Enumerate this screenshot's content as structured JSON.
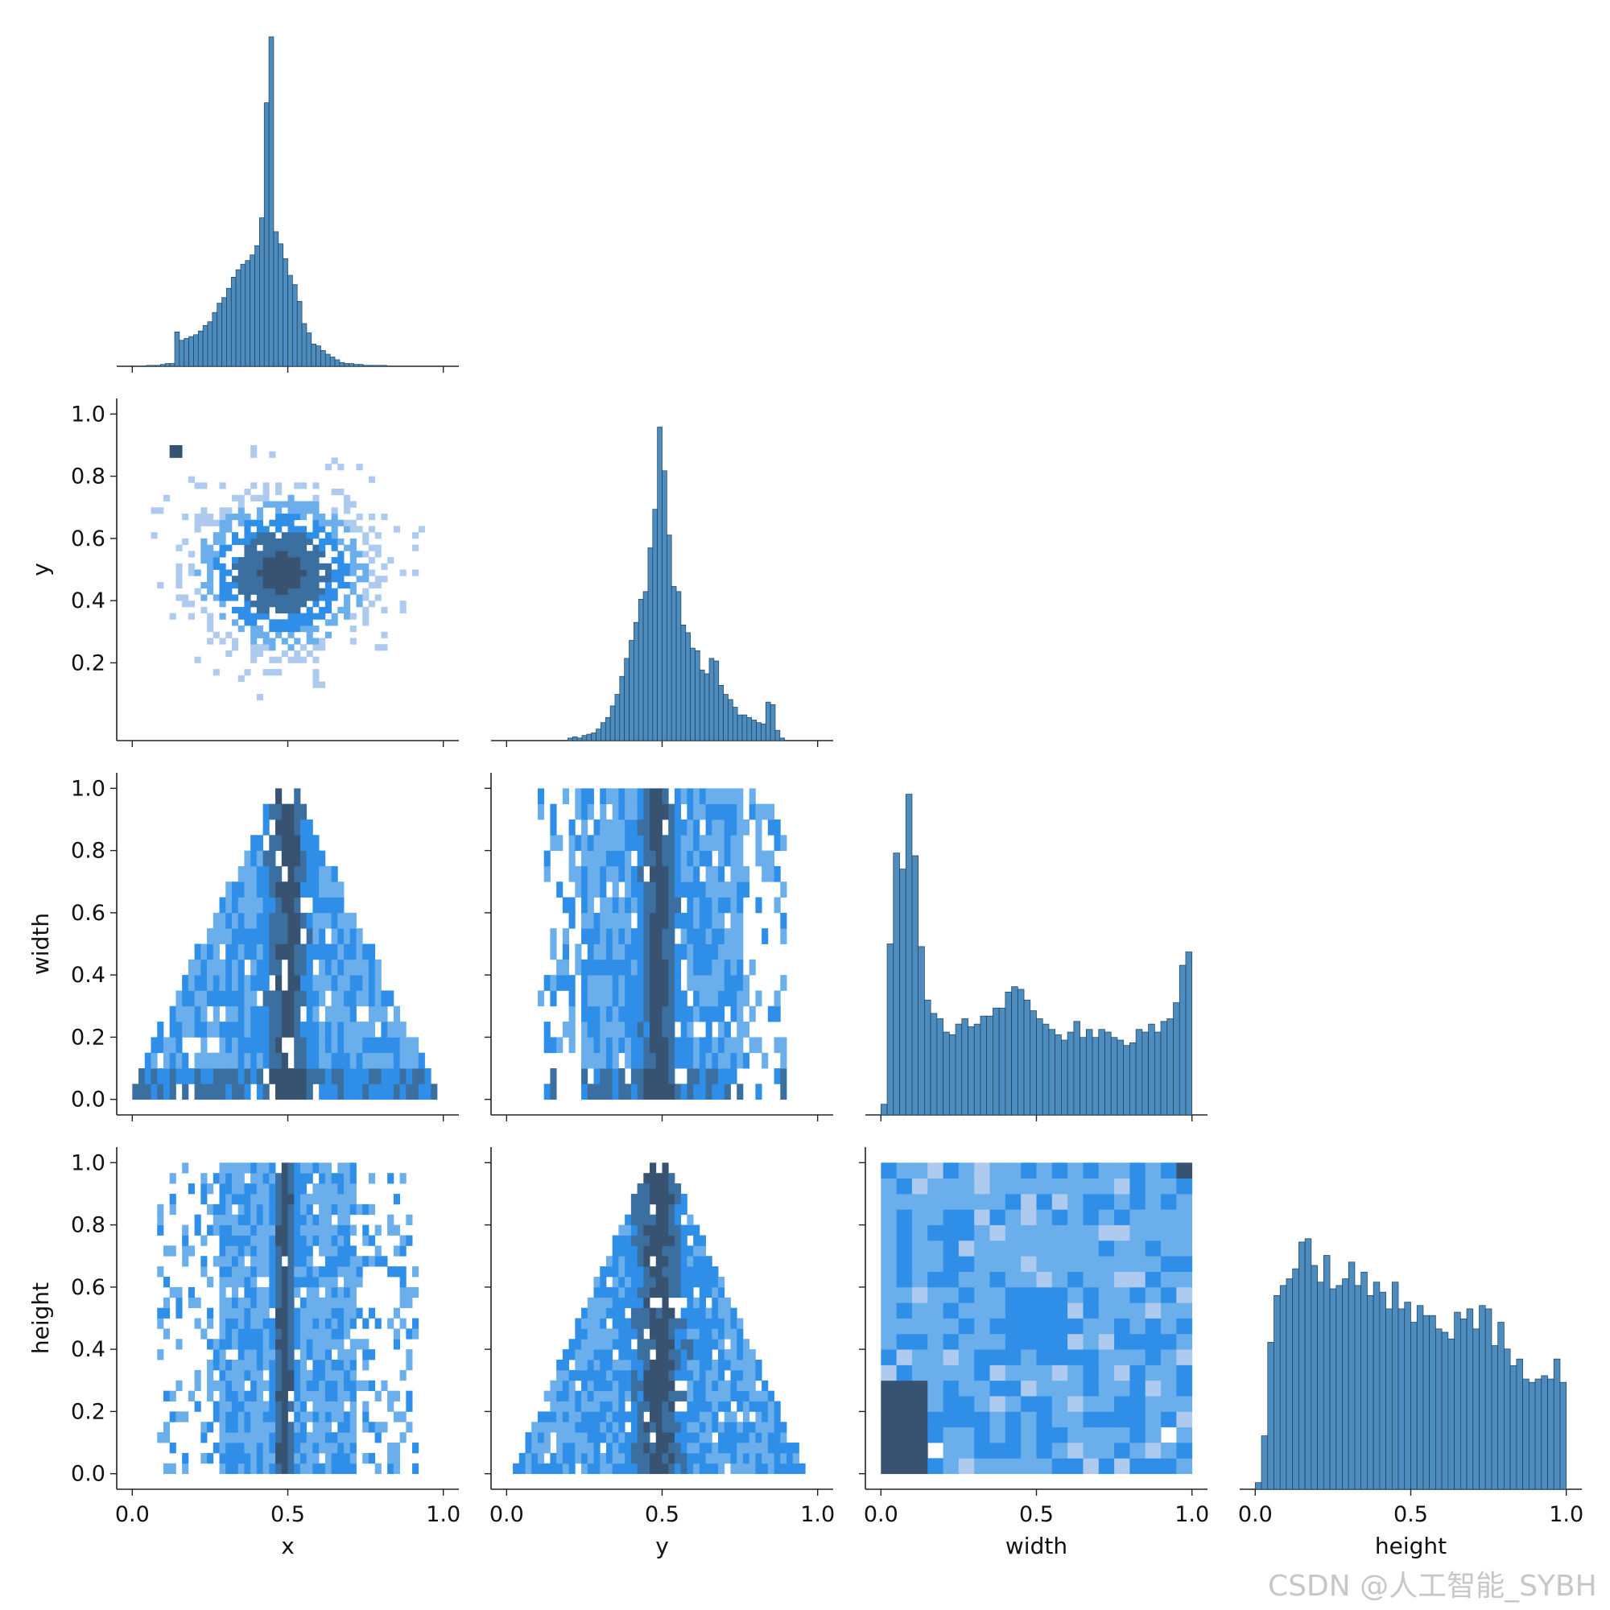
{
  "variables": [
    "x",
    "y",
    "width",
    "height"
  ],
  "colors": {
    "hist": "#4c8cbf",
    "hist_edge": "#1f3d57",
    "heat_low": "#aecbef",
    "heat_mid": "#2f8fe8",
    "heat_high": "#385271"
  },
  "watermark": "CSDN @人工智能_SYBH",
  "chart_data": {
    "type": "pairplot-corner",
    "variables": [
      "x",
      "y",
      "width",
      "height"
    ],
    "xlabels": [
      "x",
      "y",
      "width",
      "height"
    ],
    "ylabels": [
      "",
      "y",
      "width",
      "height"
    ],
    "axis_range": [
      0,
      1
    ],
    "xticks": [
      "0.0",
      "0.5",
      "1.0"
    ],
    "yticks": [
      "0.2",
      "0.4",
      "0.6",
      "0.8",
      "1.0"
    ],
    "yticks_full": [
      "0.0",
      "0.2",
      "0.4",
      "0.6",
      "0.8",
      "1.0"
    ],
    "diagonal": {
      "x": {
        "type": "histogram",
        "bins": [
          0.0,
          0.015,
          0.03,
          0.045,
          0.06,
          0.075,
          0.09,
          0.105,
          0.12,
          0.135,
          0.15,
          0.165,
          0.18,
          0.195,
          0.21,
          0.225,
          0.24,
          0.255,
          0.27,
          0.285,
          0.3,
          0.315,
          0.33,
          0.345,
          0.36,
          0.375,
          0.39,
          0.405,
          0.42,
          0.435,
          0.45,
          0.465,
          0.48,
          0.495,
          0.51,
          0.525,
          0.54,
          0.555,
          0.57,
          0.585,
          0.6,
          0.615,
          0.63,
          0.645,
          0.66,
          0.675,
          0.69,
          0.705,
          0.72,
          0.735,
          0.75,
          0.765,
          0.78,
          0.795,
          0.81,
          0.825,
          0.84,
          0.855,
          0.87,
          0.885,
          0.9,
          0.915,
          0.93,
          0.945,
          0.96,
          0.975
        ],
        "counts": [
          0,
          0,
          0,
          1,
          1,
          1,
          2,
          3,
          3,
          37,
          28,
          30,
          32,
          34,
          38,
          44,
          48,
          58,
          68,
          74,
          84,
          96,
          104,
          110,
          114,
          120,
          130,
          160,
          284,
          355,
          145,
          132,
          116,
          98,
          88,
          70,
          46,
          36,
          24,
          22,
          17,
          13,
          10,
          7,
          4,
          3,
          3,
          2,
          2,
          1,
          1,
          1,
          1,
          1,
          0,
          0,
          0,
          0,
          0,
          0,
          0,
          0,
          0,
          0,
          0,
          0
        ]
      },
      "y": {
        "type": "histogram",
        "bins": [
          0.0,
          0.015,
          0.03,
          0.045,
          0.06,
          0.075,
          0.09,
          0.105,
          0.12,
          0.135,
          0.15,
          0.165,
          0.18,
          0.195,
          0.21,
          0.225,
          0.24,
          0.255,
          0.27,
          0.285,
          0.3,
          0.315,
          0.33,
          0.345,
          0.36,
          0.375,
          0.39,
          0.405,
          0.42,
          0.435,
          0.45,
          0.465,
          0.48,
          0.495,
          0.51,
          0.525,
          0.54,
          0.555,
          0.57,
          0.585,
          0.6,
          0.615,
          0.63,
          0.645,
          0.66,
          0.675,
          0.69,
          0.705,
          0.72,
          0.735,
          0.75,
          0.765,
          0.78,
          0.795,
          0.81,
          0.825,
          0.84,
          0.855,
          0.87,
          0.885,
          0.9,
          0.915,
          0.93,
          0.945,
          0.96,
          0.975
        ],
        "counts": [
          0,
          0,
          0,
          0,
          0,
          0,
          0,
          0,
          0,
          0,
          0,
          0,
          0,
          2,
          3,
          2,
          4,
          5,
          6,
          9,
          14,
          18,
          27,
          36,
          50,
          64,
          78,
          92,
          110,
          116,
          150,
          180,
          244,
          210,
          160,
          120,
          116,
          90,
          84,
          72,
          70,
          55,
          52,
          64,
          62,
          43,
          36,
          32,
          26,
          20,
          20,
          18,
          16,
          14,
          13,
          30,
          28,
          8,
          2,
          0,
          0,
          0,
          0,
          0,
          0,
          0
        ]
      },
      "width": {
        "type": "histogram",
        "bins": [
          0.0,
          0.02,
          0.04,
          0.06,
          0.08,
          0.1,
          0.12,
          0.14,
          0.16,
          0.18,
          0.2,
          0.22,
          0.24,
          0.26,
          0.28,
          0.3,
          0.32,
          0.34,
          0.36,
          0.38,
          0.4,
          0.42,
          0.44,
          0.46,
          0.48,
          0.5,
          0.52,
          0.54,
          0.56,
          0.58,
          0.6,
          0.62,
          0.64,
          0.66,
          0.68,
          0.7,
          0.72,
          0.74,
          0.76,
          0.78,
          0.8,
          0.82,
          0.84,
          0.86,
          0.88,
          0.9,
          0.92,
          0.94,
          0.96,
          0.98
        ],
        "counts": [
          8,
          128,
          196,
          184,
          240,
          194,
          126,
          86,
          76,
          72,
          62,
          60,
          68,
          72,
          66,
          68,
          74,
          74,
          80,
          80,
          92,
          96,
          94,
          86,
          78,
          72,
          68,
          64,
          60,
          56,
          62,
          70,
          58,
          64,
          58,
          64,
          62,
          58,
          56,
          52,
          54,
          64,
          62,
          68,
          62,
          70,
          72,
          84,
          112,
          122
        ]
      },
      "height": {
        "type": "histogram",
        "bins": [
          0.0,
          0.02,
          0.04,
          0.06,
          0.08,
          0.1,
          0.12,
          0.14,
          0.16,
          0.18,
          0.2,
          0.22,
          0.24,
          0.26,
          0.28,
          0.3,
          0.32,
          0.34,
          0.36,
          0.38,
          0.4,
          0.42,
          0.44,
          0.46,
          0.48,
          0.5,
          0.52,
          0.54,
          0.56,
          0.58,
          0.6,
          0.62,
          0.64,
          0.66,
          0.68,
          0.7,
          0.72,
          0.74,
          0.76,
          0.78,
          0.8,
          0.82,
          0.84,
          0.86,
          0.88,
          0.9,
          0.92,
          0.94,
          0.96,
          0.98
        ],
        "counts": [
          4,
          32,
          88,
          116,
          122,
          126,
          132,
          148,
          150,
          134,
          124,
          140,
          120,
          122,
          126,
          136,
          122,
          130,
          116,
          124,
          118,
          108,
          124,
          108,
          112,
          100,
          110,
          104,
          104,
          96,
          94,
          90,
          106,
          102,
          108,
          96,
          110,
          108,
          86,
          100,
          84,
          74,
          78,
          66,
          64,
          66,
          68,
          66,
          78,
          64
        ]
      }
    },
    "offdiagonal": {
      "y_vs_x": {
        "type": "heatmap",
        "mode": "diffuse",
        "center": [
          0.48,
          0.49
        ],
        "spread": [
          0.16,
          0.15
        ],
        "hotspot": [
          0.12,
          0.88
        ]
      },
      "width_vs_x": {
        "type": "heatmap",
        "mode": "triangle-x"
      },
      "width_vs_y": {
        "type": "heatmap",
        "mode": "band-y"
      },
      "height_vs_x": {
        "type": "heatmap",
        "mode": "band-x"
      },
      "height_vs_y": {
        "type": "heatmap",
        "mode": "triangle-y"
      },
      "height_vs_width": {
        "type": "heatmap",
        "mode": "uniform"
      }
    }
  }
}
